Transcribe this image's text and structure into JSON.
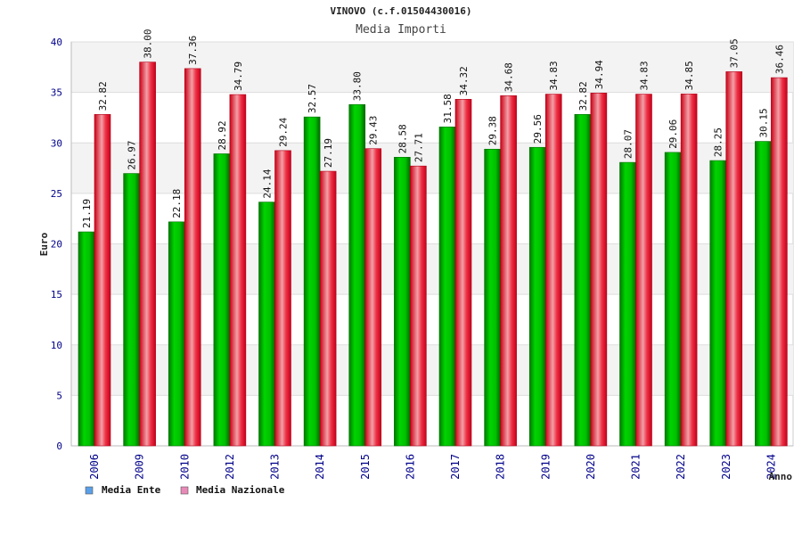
{
  "chart_data": {
    "type": "bar",
    "title": "VINOVO (c.f.01504430016)",
    "subtitle": "Media Importi",
    "xlabel": "Anno",
    "ylabel": "Euro",
    "ylim": [
      0,
      40
    ],
    "yticks": [
      0,
      5,
      10,
      15,
      20,
      25,
      30,
      35,
      40
    ],
    "categories": [
      "2006",
      "2009",
      "2010",
      "2012",
      "2013",
      "2014",
      "2015",
      "2016",
      "2017",
      "2018",
      "2019",
      "2020",
      "2021",
      "2022",
      "2023",
      "2024"
    ],
    "series": [
      {
        "name": "Media Ente",
        "color": "#00cc00",
        "legend_color": "#5aa0e8",
        "values": [
          21.19,
          26.97,
          22.18,
          28.92,
          24.14,
          32.57,
          33.8,
          28.58,
          31.58,
          29.38,
          29.56,
          32.82,
          28.07,
          29.06,
          28.25,
          30.15
        ],
        "labels": [
          "21.19",
          "26.97",
          "22.18",
          "28.92",
          "24.14",
          "32.57",
          "33.80",
          "28.58",
          "31.58",
          "29.38",
          "29.56",
          "32.82",
          "28.07",
          "29.06",
          "28.25",
          "30.15"
        ]
      },
      {
        "name": "Media Nazionale",
        "color": "#e8001c",
        "legend_color": "#e88ab8",
        "values": [
          32.82,
          38.0,
          37.36,
          34.79,
          29.24,
          27.19,
          29.43,
          27.71,
          34.32,
          34.68,
          34.83,
          34.94,
          34.83,
          34.85,
          37.05,
          36.46
        ],
        "labels": [
          "32.82",
          "38.00",
          "37.36",
          "34.79",
          "29.24",
          "27.19",
          "29.43",
          "27.71",
          "34.32",
          "34.68",
          "34.83",
          "34.94",
          "34.83",
          "34.85",
          "37.05",
          "36.46"
        ]
      }
    ],
    "legend_position": "bottom-left"
  }
}
